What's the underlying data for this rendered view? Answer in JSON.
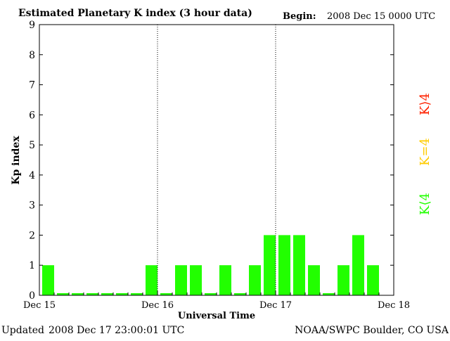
{
  "header": {
    "title": "Estimated Planetary K index (3 hour data)",
    "begin_label": "Begin:",
    "begin_value": "2008 Dec 15 0000 UTC"
  },
  "footer": {
    "updated_label": "Updated",
    "updated_value": "2008 Dec 17 23:00:01 UTC",
    "source": "NOAA/SWPC Boulder, CO USA"
  },
  "legend": {
    "high": "K⟩4",
    "equal": "K=4",
    "low": "K⟨4",
    "colors": {
      "high": "#ff2200",
      "equal": "#ffcc00",
      "low": "#22ff00"
    }
  },
  "chart_data": {
    "type": "bar",
    "title": "Estimated Planetary K index (3 hour data)",
    "xlabel": "Universal Time",
    "ylabel": "Kp index",
    "ylim": [
      0,
      9
    ],
    "yticks": [
      "0",
      "1",
      "2",
      "3",
      "4",
      "5",
      "6",
      "7",
      "8",
      "9"
    ],
    "xticks": [
      "Dec 15",
      "Dec 16",
      "Dec 17",
      "Dec 18"
    ],
    "interval_hours": 3,
    "series": [
      {
        "values": [
          1,
          0,
          0,
          0,
          0,
          0,
          0,
          1,
          0,
          1,
          1,
          0,
          1,
          0,
          1,
          2,
          2,
          2,
          1,
          0,
          1,
          2,
          1
        ]
      }
    ],
    "bar_color": "#22ff00",
    "day_separators": [
      "Dec 16",
      "Dec 17"
    ]
  }
}
